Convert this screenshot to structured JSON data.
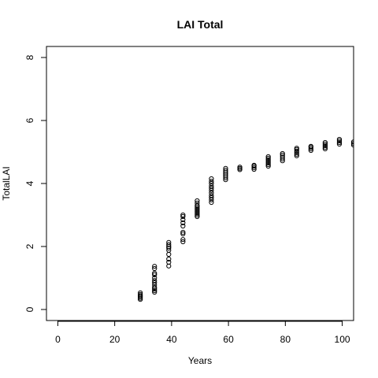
{
  "chart_data": {
    "type": "scatter",
    "title": "LAI Total",
    "xlabel": "Years",
    "ylabel": "TotalLAI",
    "xlim": [
      -4,
      104
    ],
    "ylim": [
      -0.35,
      8.35
    ],
    "x_ticks": [
      "0",
      "20",
      "40",
      "60",
      "80",
      "100"
    ],
    "y_ticks": [
      "0",
      "2",
      "4",
      "6",
      "8"
    ],
    "grid": false,
    "marker": "open-circle",
    "color": "#000000",
    "points": [
      [
        29,
        0.32
      ],
      [
        29,
        0.36
      ],
      [
        29,
        0.4
      ],
      [
        29,
        0.44
      ],
      [
        29,
        0.48
      ],
      [
        29,
        0.53
      ],
      [
        34,
        0.55
      ],
      [
        34,
        0.6
      ],
      [
        34,
        0.65
      ],
      [
        34,
        0.7
      ],
      [
        34,
        0.78
      ],
      [
        34,
        0.85
      ],
      [
        34,
        0.92
      ],
      [
        34,
        1.0
      ],
      [
        34,
        1.1
      ],
      [
        34,
        1.15
      ],
      [
        34,
        1.3
      ],
      [
        34,
        1.37
      ],
      [
        39,
        1.38
      ],
      [
        39,
        1.5
      ],
      [
        39,
        1.6
      ],
      [
        39,
        1.75
      ],
      [
        39,
        1.88
      ],
      [
        39,
        1.95
      ],
      [
        39,
        2.0
      ],
      [
        39,
        2.06
      ],
      [
        39,
        2.13
      ],
      [
        44,
        2.15
      ],
      [
        44,
        2.22
      ],
      [
        44,
        2.4
      ],
      [
        44,
        2.45
      ],
      [
        44,
        2.65
      ],
      [
        44,
        2.75
      ],
      [
        44,
        2.85
      ],
      [
        44,
        2.95
      ],
      [
        44,
        3.0
      ],
      [
        49,
        2.95
      ],
      [
        49,
        3.0
      ],
      [
        49,
        3.05
      ],
      [
        49,
        3.1
      ],
      [
        49,
        3.15
      ],
      [
        49,
        3.2
      ],
      [
        49,
        3.25
      ],
      [
        49,
        3.3
      ],
      [
        49,
        3.38
      ],
      [
        49,
        3.45
      ],
      [
        54,
        3.4
      ],
      [
        54,
        3.48
      ],
      [
        54,
        3.55
      ],
      [
        54,
        3.62
      ],
      [
        54,
        3.7
      ],
      [
        54,
        3.78
      ],
      [
        54,
        3.85
      ],
      [
        54,
        3.92
      ],
      [
        54,
        4.0
      ],
      [
        54,
        4.07
      ],
      [
        54,
        4.15
      ],
      [
        59,
        4.12
      ],
      [
        59,
        4.18
      ],
      [
        59,
        4.24
      ],
      [
        59,
        4.3
      ],
      [
        59,
        4.36
      ],
      [
        59,
        4.42
      ],
      [
        59,
        4.48
      ],
      [
        64,
        4.44
      ],
      [
        64,
        4.48
      ],
      [
        64,
        4.52
      ],
      [
        69,
        4.45
      ],
      [
        69,
        4.5
      ],
      [
        69,
        4.55
      ],
      [
        69,
        4.58
      ],
      [
        74,
        4.55
      ],
      [
        74,
        4.6
      ],
      [
        74,
        4.65
      ],
      [
        74,
        4.7
      ],
      [
        74,
        4.75
      ],
      [
        74,
        4.8
      ],
      [
        74,
        4.85
      ],
      [
        79,
        4.72
      ],
      [
        79,
        4.78
      ],
      [
        79,
        4.84
      ],
      [
        79,
        4.9
      ],
      [
        79,
        4.95
      ],
      [
        84,
        4.88
      ],
      [
        84,
        4.93
      ],
      [
        84,
        4.98
      ],
      [
        84,
        5.03
      ],
      [
        84,
        5.08
      ],
      [
        84,
        5.12
      ],
      [
        89,
        5.05
      ],
      [
        89,
        5.1
      ],
      [
        89,
        5.15
      ],
      [
        89,
        5.18
      ],
      [
        94,
        5.1
      ],
      [
        94,
        5.15
      ],
      [
        94,
        5.2
      ],
      [
        94,
        5.25
      ],
      [
        94,
        5.3
      ],
      [
        99,
        5.25
      ],
      [
        99,
        5.3
      ],
      [
        99,
        5.35
      ],
      [
        99,
        5.4
      ],
      [
        104,
        5.22
      ],
      [
        104,
        5.27
      ],
      [
        104,
        5.32
      ]
    ]
  }
}
